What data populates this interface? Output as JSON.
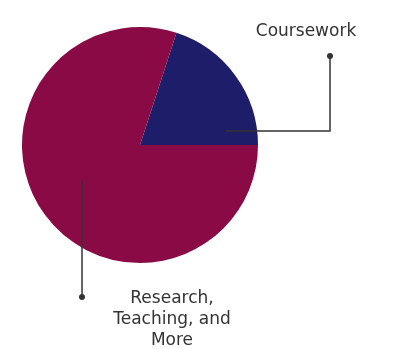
{
  "chart_data": {
    "type": "pie",
    "categories": [
      "Coursework",
      "Research, Teaching, and More"
    ],
    "values": [
      20,
      80
    ],
    "colors": [
      "#1e1d6a",
      "#8a0a46"
    ]
  }
}
